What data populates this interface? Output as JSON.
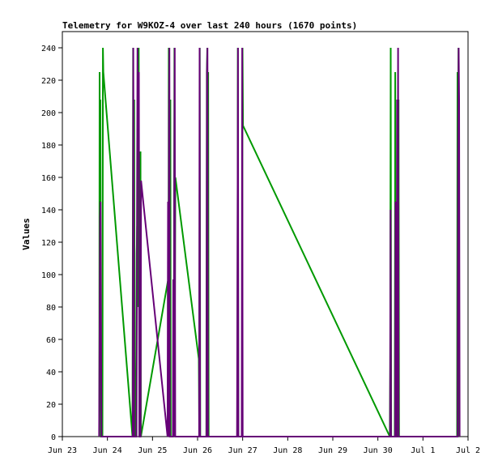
{
  "chart_data": {
    "type": "line",
    "title": "Telemetry for W9KOZ-4 over last 240 hours (1670 points)",
    "xlabel": "",
    "ylabel": "Values",
    "ylim": [
      0,
      250
    ],
    "yticks": [
      0,
      20,
      40,
      60,
      80,
      100,
      120,
      140,
      160,
      180,
      200,
      220,
      240
    ],
    "xlim": [
      "2023-06-23T00:00",
      "2023-07-02T00:00"
    ],
    "xticks": [
      {
        "label": "Jun 23",
        "date": "2023-06-23T00:00"
      },
      {
        "label": "Jun 24",
        "date": "2023-06-24T00:00"
      },
      {
        "label": "Jun 25",
        "date": "2023-06-25T00:00"
      },
      {
        "label": "Jun 26",
        "date": "2023-06-26T00:00"
      },
      {
        "label": "Jun 27",
        "date": "2023-06-27T00:00"
      },
      {
        "label": "Jun 28",
        "date": "2023-06-28T00:00"
      },
      {
        "label": "Jun 29",
        "date": "2023-06-29T00:00"
      },
      {
        "label": "Jun 30",
        "date": "2023-06-30T00:00"
      },
      {
        "label": "Jul 1",
        "date": "2023-07-01T00:00"
      },
      {
        "label": "Jul 2",
        "date": "2023-07-02T00:00"
      }
    ],
    "grid": false,
    "legend": "none",
    "series": [
      {
        "color": "#009900",
        "points": [
          [
            "2023-06-23T19:40",
            0
          ],
          [
            "2023-06-23T19:50",
            225
          ],
          [
            "2023-06-23T20:05",
            150
          ],
          [
            "2023-06-23T20:15",
            208
          ],
          [
            "2023-06-23T20:25",
            80
          ],
          [
            "2023-06-23T20:35",
            0
          ],
          [
            "2023-06-23T21:20",
            0
          ],
          [
            "2023-06-23T21:35",
            240
          ],
          [
            "2023-06-23T21:50",
            225
          ],
          [
            "2023-06-24T13:20",
            0
          ],
          [
            "2023-06-24T13:40",
            240
          ],
          [
            "2023-06-24T13:55",
            0
          ],
          [
            "2023-06-24T14:15",
            208
          ],
          [
            "2023-06-24T14:30",
            50
          ],
          [
            "2023-06-24T14:45",
            0
          ],
          [
            "2023-06-24T15:20",
            0
          ],
          [
            "2023-06-24T15:35",
            113
          ],
          [
            "2023-06-24T15:50",
            130
          ],
          [
            "2023-06-24T16:05",
            80
          ],
          [
            "2023-06-24T16:20",
            200
          ],
          [
            "2023-06-24T16:40",
            240
          ],
          [
            "2023-06-24T17:00",
            0
          ],
          [
            "2023-06-24T17:20",
            0
          ],
          [
            "2023-06-24T17:35",
            176
          ],
          [
            "2023-06-24T17:50",
            0
          ],
          [
            "2023-06-25T08:10",
            96
          ],
          [
            "2023-06-25T08:25",
            0
          ],
          [
            "2023-06-25T08:40",
            240
          ],
          [
            "2023-06-25T08:55",
            0
          ],
          [
            "2023-06-25T09:15",
            160
          ],
          [
            "2023-06-25T09:30",
            208
          ],
          [
            "2023-06-25T09:45",
            0
          ],
          [
            "2023-06-25T11:00",
            0
          ],
          [
            "2023-06-25T11:20",
            16
          ],
          [
            "2023-06-25T11:40",
            240
          ],
          [
            "2023-06-25T11:55",
            80
          ],
          [
            "2023-06-25T12:10",
            160
          ],
          [
            "2023-06-26T00:40",
            48
          ],
          [
            "2023-06-26T00:55",
            0
          ],
          [
            "2023-06-26T01:10",
            240
          ],
          [
            "2023-06-26T01:25",
            0
          ],
          [
            "2023-06-26T04:40",
            0
          ],
          [
            "2023-06-26T04:55",
            225
          ],
          [
            "2023-06-26T05:10",
            240
          ],
          [
            "2023-06-26T05:25",
            0
          ],
          [
            "2023-06-26T05:40",
            225
          ],
          [
            "2023-06-26T05:55",
            0
          ],
          [
            "2023-06-26T21:10",
            0
          ],
          [
            "2023-06-26T21:25",
            240
          ],
          [
            "2023-06-26T21:40",
            0
          ],
          [
            "2023-06-26T23:40",
            0
          ],
          [
            "2023-06-26T23:55",
            240
          ],
          [
            "2023-06-27T00:10",
            192
          ],
          [
            "2023-06-30T06:20",
            0
          ],
          [
            "2023-06-30T06:35",
            45
          ],
          [
            "2023-06-30T06:50",
            240
          ],
          [
            "2023-06-30T07:05",
            0
          ],
          [
            "2023-06-30T09:00",
            0
          ],
          [
            "2023-06-30T09:15",
            225
          ],
          [
            "2023-06-30T09:30",
            0
          ],
          [
            "2023-06-30T10:10",
            0
          ],
          [
            "2023-06-30T10:25",
            208
          ],
          [
            "2023-06-30T10:40",
            0
          ],
          [
            "2023-06-30T11:00",
            208
          ],
          [
            "2023-06-30T11:15",
            0
          ],
          [
            "2023-07-01T18:10",
            0
          ],
          [
            "2023-07-01T18:25",
            225
          ],
          [
            "2023-07-01T18:40",
            145
          ],
          [
            "2023-07-01T18:55",
            240
          ],
          [
            "2023-07-01T19:10",
            0
          ]
        ]
      },
      {
        "color": "#660077",
        "points": [
          [
            "2023-06-23T19:35",
            0
          ],
          [
            "2023-06-23T19:50",
            65
          ],
          [
            "2023-06-23T20:05",
            135
          ],
          [
            "2023-06-23T20:20",
            145
          ],
          [
            "2023-06-23T20:35",
            80
          ],
          [
            "2023-06-23T20:50",
            0
          ],
          [
            "2023-06-24T13:30",
            0
          ],
          [
            "2023-06-24T13:45",
            240
          ],
          [
            "2023-06-24T14:00",
            145
          ],
          [
            "2023-06-24T14:15",
            0
          ],
          [
            "2023-06-24T15:30",
            0
          ],
          [
            "2023-06-24T15:45",
            135
          ],
          [
            "2023-06-24T16:00",
            240
          ],
          [
            "2023-06-24T16:15",
            190
          ],
          [
            "2023-06-24T16:30",
            217
          ],
          [
            "2023-06-24T16:45",
            225
          ],
          [
            "2023-06-24T17:00",
            0
          ],
          [
            "2023-06-24T17:40",
            0
          ],
          [
            "2023-06-24T17:55",
            158
          ],
          [
            "2023-06-25T08:00",
            0
          ],
          [
            "2023-06-25T08:15",
            145
          ],
          [
            "2023-06-25T08:30",
            0
          ],
          [
            "2023-06-25T08:45",
            192
          ],
          [
            "2023-06-25T09:00",
            240
          ],
          [
            "2023-06-25T09:15",
            0
          ],
          [
            "2023-06-25T10:50",
            0
          ],
          [
            "2023-06-25T11:05",
            97
          ],
          [
            "2023-06-25T11:20",
            0
          ],
          [
            "2023-06-25T11:35",
            160
          ],
          [
            "2023-06-25T11:50",
            240
          ],
          [
            "2023-06-25T12:05",
            0
          ],
          [
            "2023-06-26T00:50",
            0
          ],
          [
            "2023-06-26T01:05",
            240
          ],
          [
            "2023-06-26T01:20",
            0
          ],
          [
            "2023-06-26T04:45",
            0
          ],
          [
            "2023-06-26T05:00",
            225
          ],
          [
            "2023-06-26T05:15",
            240
          ],
          [
            "2023-06-26T05:30",
            0
          ],
          [
            "2023-06-26T21:00",
            0
          ],
          [
            "2023-06-26T21:15",
            112
          ],
          [
            "2023-06-26T21:30",
            240
          ],
          [
            "2023-06-26T21:45",
            0
          ],
          [
            "2023-06-26T23:30",
            0
          ],
          [
            "2023-06-26T23:45",
            240
          ],
          [
            "2023-06-27T00:00",
            0
          ],
          [
            "2023-06-30T06:30",
            0
          ],
          [
            "2023-06-30T06:45",
            140
          ],
          [
            "2023-06-30T07:00",
            0
          ],
          [
            "2023-06-30T09:10",
            0
          ],
          [
            "2023-06-30T09:25",
            145
          ],
          [
            "2023-06-30T09:40",
            0
          ],
          [
            "2023-06-30T10:00",
            0
          ],
          [
            "2023-06-30T10:15",
            208
          ],
          [
            "2023-06-30T10:30",
            80
          ],
          [
            "2023-06-30T10:45",
            240
          ],
          [
            "2023-06-30T11:00",
            0
          ],
          [
            "2023-07-01T18:30",
            0
          ],
          [
            "2023-07-01T18:45",
            176
          ],
          [
            "2023-07-01T19:00",
            240
          ],
          [
            "2023-07-01T19:15",
            208
          ],
          [
            "2023-07-01T19:30",
            0
          ]
        ]
      }
    ]
  }
}
